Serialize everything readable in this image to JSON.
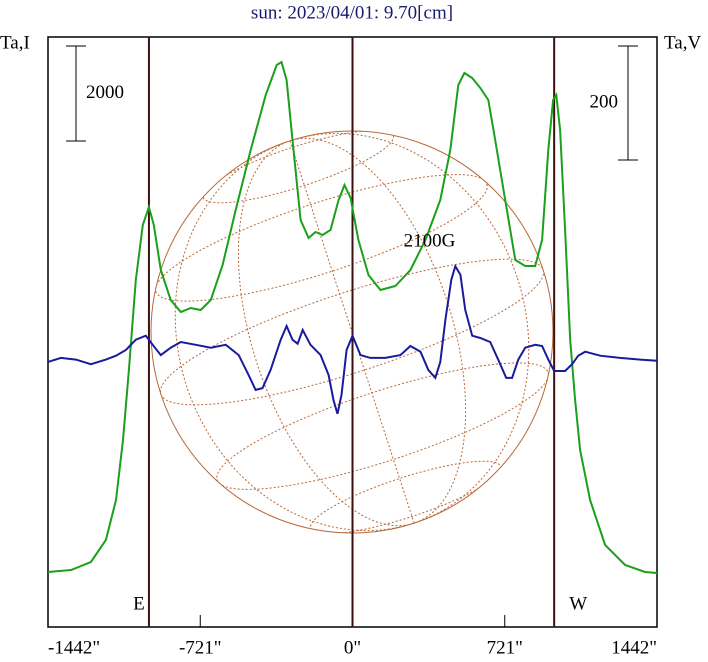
{
  "chart_data": {
    "type": "line",
    "title": "sun: 2023/04/01: 9.70[cm]",
    "ylabel": "Ta,I",
    "y2label": "Ta,V",
    "xlim": [
      -1442,
      1442
    ],
    "xticks": [
      {
        "value": -1442,
        "label": "-1442\""
      },
      {
        "value": -721,
        "label": "-721\""
      },
      {
        "value": 0,
        "label": "0\""
      },
      {
        "value": 721,
        "label": "721\""
      },
      {
        "value": 1442,
        "label": "1442\""
      }
    ],
    "ylim": [
      0,
      12420
    ],
    "y2lim": [
      -465,
      570
    ],
    "markers": [
      {
        "x": -964,
        "label": "E"
      },
      {
        "x": 0
      },
      {
        "x": 955,
        "label": "W"
      }
    ],
    "scale_bars": [
      {
        "value": 2000,
        "axis": "y"
      },
      {
        "value": 200,
        "axis": "y2"
      }
    ],
    "annotations": [
      {
        "text": "2100G",
        "x": 487,
        "y": 8100
      }
    ],
    "series": [
      {
        "name": "I",
        "color": "#1aa01a",
        "x": [
          -1442,
          -1333,
          -1239,
          -1168,
          -1120,
          -1087,
          -1059,
          -1026,
          -993,
          -964,
          -941,
          -908,
          -861,
          -813,
          -766,
          -719,
          -671,
          -615,
          -553,
          -482,
          -411,
          -359,
          -336,
          -312,
          -284,
          -246,
          -208,
          -175,
          -142,
          -104,
          -66,
          -38,
          -9,
          28,
          76,
          132,
          203,
          274,
          345,
          416,
          463,
          501,
          530,
          567,
          605,
          643,
          676,
          723,
          771,
          818,
          865,
          898,
          927,
          950,
          965,
          983,
          1007,
          1031,
          1054,
          1078,
          1125,
          1196,
          1291,
          1385,
          1442
        ],
        "values": [
          1158,
          1200,
          1368,
          1831,
          2673,
          3936,
          5410,
          7304,
          8462,
          8841,
          8462,
          7515,
          6883,
          6631,
          6715,
          6673,
          6883,
          7620,
          8778,
          10041,
          11199,
          11830,
          11893,
          11514,
          10251,
          8567,
          8188,
          8315,
          8252,
          8357,
          8988,
          9304,
          9030,
          8146,
          7410,
          7094,
          7178,
          7515,
          8146,
          8988,
          10041,
          11409,
          11662,
          11556,
          11346,
          11093,
          10251,
          8988,
          7725,
          7599,
          7599,
          8146,
          10041,
          11093,
          11199,
          10462,
          8357,
          6041,
          4778,
          3726,
          2673,
          1726,
          1305,
          1158,
          1137
        ]
      },
      {
        "name": "V",
        "color": "#1a1a9c",
        "axis": "y2",
        "x": [
          -1442,
          -1381,
          -1310,
          -1239,
          -1168,
          -1120,
          -1073,
          -1026,
          -979,
          -946,
          -908,
          -861,
          -813,
          -742,
          -671,
          -600,
          -539,
          -492,
          -459,
          -426,
          -388,
          -340,
          -312,
          -284,
          -260,
          -236,
          -199,
          -151,
          -113,
          -90,
          -71,
          -52,
          -28,
          0,
          38,
          85,
          156,
          227,
          274,
          322,
          359,
          392,
          416,
          440,
          468,
          487,
          511,
          534,
          567,
          605,
          652,
          690,
          728,
          756,
          785,
          818,
          865,
          898,
          927,
          955,
          1007,
          1040,
          1069,
          1102,
          1173,
          1267,
          1362,
          1442
        ],
        "values": [
          0,
          7,
          4,
          -4,
          4,
          11,
          21,
          39,
          46,
          30,
          12,
          25,
          35,
          30,
          25,
          30,
          12,
          -23,
          -49,
          -46,
          -14,
          39,
          63,
          39,
          32,
          56,
          30,
          12,
          -23,
          -67,
          -91,
          -58,
          21,
          46,
          12,
          7,
          7,
          12,
          28,
          18,
          -14,
          -28,
          0,
          74,
          144,
          168,
          153,
          91,
          46,
          42,
          35,
          4,
          -28,
          -28,
          4,
          25,
          30,
          28,
          4,
          -16,
          -16,
          -4,
          11,
          18,
          11,
          7,
          4,
          2
        ]
      }
    ]
  }
}
